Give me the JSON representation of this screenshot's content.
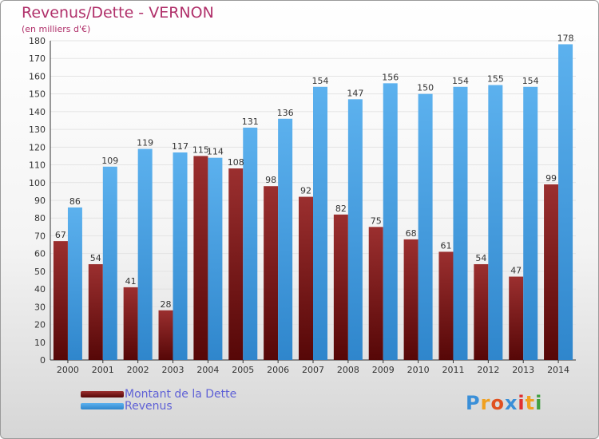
{
  "chart_data": {
    "type": "bar",
    "title": "Revenus/Dette - VERNON",
    "subtitle": "(en milliers d'€)",
    "categories": [
      "2000",
      "2001",
      "2002",
      "2003",
      "2004",
      "2005",
      "2006",
      "2007",
      "2008",
      "2009",
      "2010",
      "2011",
      "2012",
      "2013",
      "2014"
    ],
    "series": [
      {
        "name": "Montant de la Dette",
        "color": "#7a1a1a",
        "values": [
          67,
          54,
          41,
          28,
          115,
          108,
          98,
          92,
          82,
          75,
          68,
          61,
          54,
          47,
          99
        ]
      },
      {
        "name": "Revenus",
        "color": "#3d9ae0",
        "values": [
          86,
          109,
          119,
          117,
          114,
          131,
          136,
          154,
          147,
          156,
          150,
          154,
          155,
          154,
          178
        ]
      }
    ],
    "ylim": [
      0,
      180
    ],
    "yticks": [
      0,
      10,
      20,
      30,
      40,
      50,
      60,
      70,
      80,
      90,
      100,
      110,
      120,
      130,
      140,
      150,
      160,
      170,
      180
    ],
    "grid": true,
    "legend_position": "bottom-left"
  },
  "logo": {
    "text": "Proxiti",
    "letter_colors": [
      "#3a8fd8",
      "#f0a020",
      "#e05020",
      "#3a8fd8",
      "#e03030",
      "#f0a020",
      "#40a040"
    ]
  }
}
